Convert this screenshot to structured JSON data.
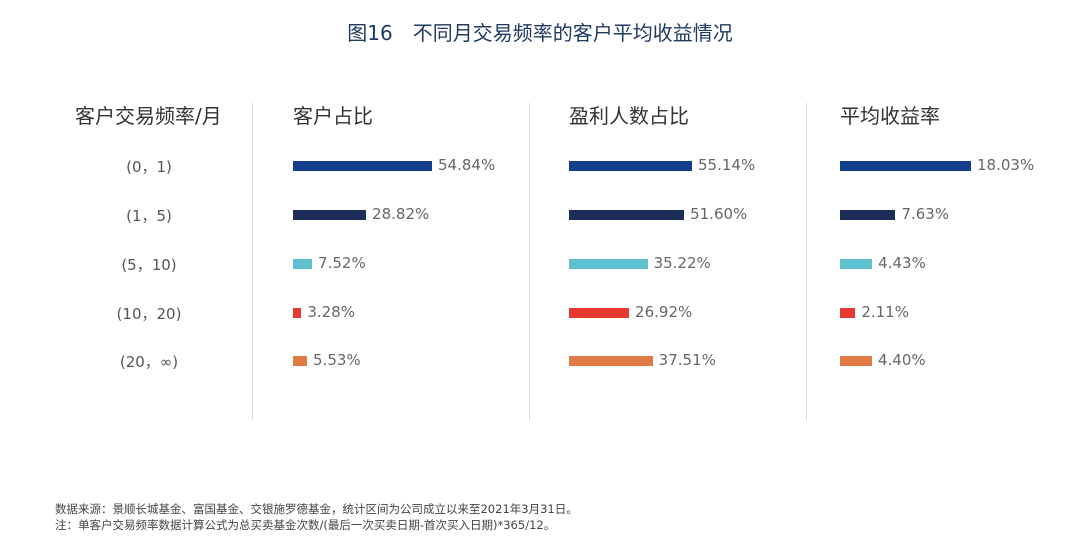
{
  "title": "图16　不同月交易频率的客户平均收益情况",
  "row_header": "客户交易频率/月",
  "chart_data": {
    "type": "bar",
    "orientation": "horizontal",
    "title": "图16　不同月交易频率的客户平均收益情况",
    "categories": [
      "(0，1)",
      "(1，5)",
      "(5，10)",
      "(10，20)",
      "(20，∞)"
    ],
    "colors": [
      "#143e8c",
      "#1c2d5a",
      "#5ebfcf",
      "#e8382f",
      "#e07b45"
    ],
    "series": [
      {
        "name": "客户占比",
        "values": [
          54.84,
          28.82,
          7.52,
          3.28,
          5.53
        ],
        "labels": [
          "54.84%",
          "28.82%",
          "7.52%",
          "3.28%",
          "5.53%"
        ]
      },
      {
        "name": "盈利人数占比",
        "values": [
          55.14,
          51.6,
          35.22,
          26.92,
          37.51
        ],
        "labels": [
          "55.14%",
          "51.60%",
          "35.22%",
          "26.92%",
          "37.51%"
        ]
      },
      {
        "name": "平均收益率",
        "values": [
          18.03,
          7.63,
          4.43,
          2.11,
          4.4
        ],
        "labels": [
          "18.03%",
          "7.63%",
          "4.43%",
          "2.11%",
          "4.40%"
        ]
      }
    ]
  },
  "footnotes": [
    "数据来源：景顺长城基金、富国基金、交银施罗德基金，统计区间为公司成立以来至2021年3月31日。",
    "注：单客户交易频率数据计算公式为总买卖基金次数/(最后一次买卖日期-首次买入日期)*365/12。"
  ]
}
